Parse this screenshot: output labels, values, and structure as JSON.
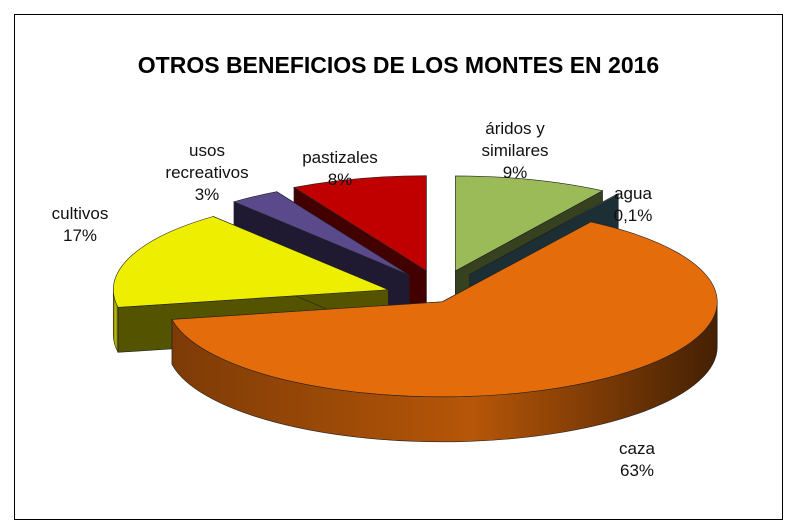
{
  "chart_data": {
    "type": "pie3d",
    "title": "OTROS BENEFICIOS DE LOS MONTES EN 2016",
    "categories": [
      "áridos y similares",
      "agua",
      "caza",
      "cultivos",
      "usos recreativos",
      "pastizales"
    ],
    "values": [
      9,
      0.1,
      63,
      17,
      3,
      8
    ],
    "value_labels": [
      "9%",
      "0,1%",
      "63%",
      "17%",
      "3%",
      "8%"
    ],
    "colors": [
      "#9bbb59",
      "#4f8797",
      "#e46c0a",
      "#eeee00",
      "#5a4a8c",
      "#c00000"
    ]
  }
}
